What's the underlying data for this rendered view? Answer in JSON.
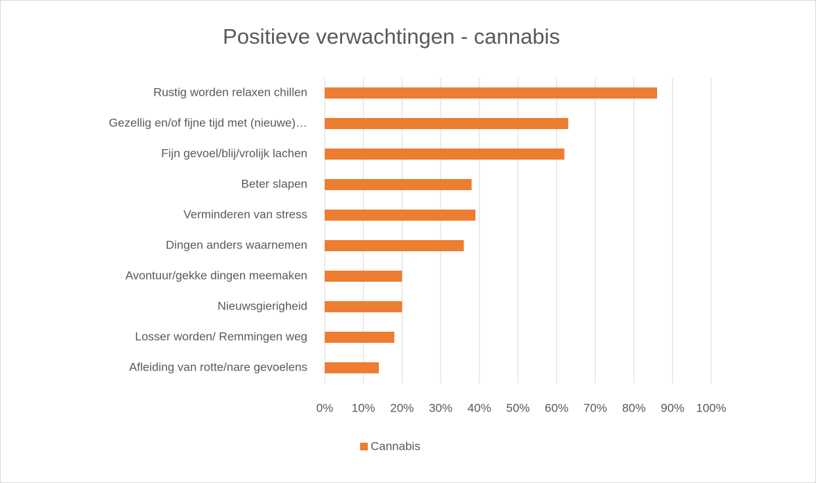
{
  "chart_data": {
    "type": "bar",
    "orientation": "horizontal",
    "title": "Positieve verwachtingen - cannabis",
    "categories": [
      "Rustig worden relaxen chillen",
      "Gezellig en/of fijne tijd met (nieuwe)…",
      "Fijn gevoel/blij/vrolijk lachen",
      "Beter slapen",
      "Verminderen van stress",
      "Dingen anders waarnemen",
      "Avontuur/gekke dingen meemaken",
      "Nieuwsgierigheid",
      "Losser worden/ Remmingen weg",
      "Afleiding van rotte/nare gevoelens"
    ],
    "series": [
      {
        "name": "Cannabis",
        "color": "#ed7d31",
        "values": [
          86,
          63,
          62,
          38,
          39,
          36,
          20,
          20,
          18,
          14
        ]
      }
    ],
    "xlim": [
      0,
      100
    ],
    "xticks": [
      {
        "value": 0,
        "label": "0%"
      },
      {
        "value": 10,
        "label": "10%"
      },
      {
        "value": 20,
        "label": "20%"
      },
      {
        "value": 30,
        "label": "30%"
      },
      {
        "value": 40,
        "label": "40%"
      },
      {
        "value": 50,
        "label": "50%"
      },
      {
        "value": 60,
        "label": "60%"
      },
      {
        "value": 70,
        "label": "70%"
      },
      {
        "value": 80,
        "label": "80%"
      },
      {
        "value": 90,
        "label": "90%"
      },
      {
        "value": 100,
        "label": "100%"
      }
    ],
    "grid": true,
    "legend": "bottom"
  }
}
